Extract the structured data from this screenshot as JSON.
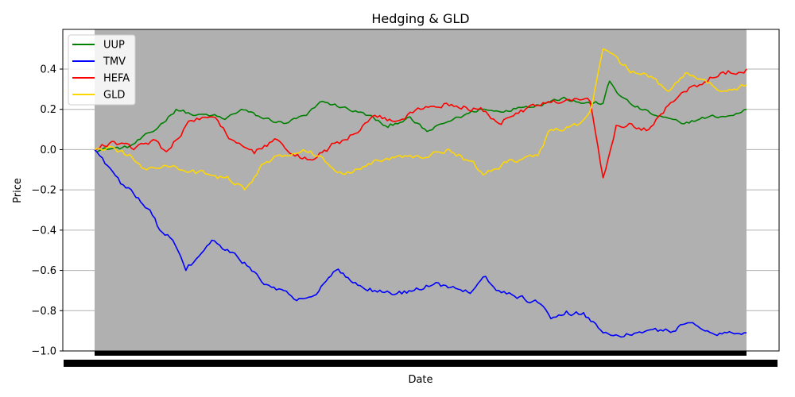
{
  "chart_data": {
    "type": "line",
    "title": "Hedging & GLD",
    "xlabel": "Date",
    "ylabel": "Price",
    "ylim": [
      -1.0,
      0.58
    ],
    "yticks": [
      0.4,
      0.2,
      0.0,
      -0.2,
      -0.4,
      -0.6,
      -0.8,
      -1.0
    ],
    "ytick_labels": [
      "0.4",
      "0.2",
      "0.0",
      "−0.2",
      "−0.4",
      "−0.6",
      "−0.8",
      "−1.0"
    ],
    "x_tick_labels_legible": false,
    "grid": "horizontal",
    "legend_position": "top-left",
    "shaded_region": true,
    "colors": {
      "shade": "#b0b0b0",
      "grid": "#b0b0b0"
    },
    "series": [
      {
        "name": "UUP",
        "color": "#008000",
        "x": [
          0.0,
          0.05,
          0.09,
          0.125,
          0.155,
          0.18,
          0.2,
          0.225,
          0.255,
          0.29,
          0.325,
          0.35,
          0.38,
          0.42,
          0.45,
          0.48,
          0.51,
          0.55,
          0.59,
          0.62,
          0.65,
          0.69,
          0.72,
          0.75,
          0.78,
          0.79,
          0.805,
          0.825,
          0.86,
          0.9,
          0.94,
          0.98,
          1.0
        ],
        "y": [
          0.0,
          0.01,
          0.09,
          0.2,
          0.17,
          0.17,
          0.15,
          0.2,
          0.16,
          0.13,
          0.17,
          0.24,
          0.21,
          0.17,
          0.11,
          0.16,
          0.09,
          0.15,
          0.2,
          0.19,
          0.21,
          0.23,
          0.26,
          0.23,
          0.23,
          0.34,
          0.27,
          0.22,
          0.17,
          0.13,
          0.16,
          0.17,
          0.2
        ]
      },
      {
        "name": "TMV",
        "color": "#0000ff",
        "x": [
          0.0,
          0.02,
          0.04,
          0.06,
          0.085,
          0.1,
          0.12,
          0.14,
          0.16,
          0.18,
          0.2,
          0.23,
          0.26,
          0.29,
          0.31,
          0.34,
          0.37,
          0.4,
          0.43,
          0.46,
          0.49,
          0.52,
          0.55,
          0.58,
          0.6,
          0.62,
          0.64,
          0.68,
          0.7,
          0.72,
          0.75,
          0.78,
          0.8,
          0.84,
          0.88,
          0.91,
          0.94,
          0.97,
          1.0
        ],
        "y": [
          0.0,
          -0.08,
          -0.17,
          -0.22,
          -0.3,
          -0.4,
          -0.45,
          -0.6,
          -0.53,
          -0.45,
          -0.5,
          -0.56,
          -0.67,
          -0.7,
          -0.75,
          -0.72,
          -0.6,
          -0.66,
          -0.7,
          -0.72,
          -0.7,
          -0.67,
          -0.68,
          -0.7,
          -0.63,
          -0.7,
          -0.72,
          -0.76,
          -0.84,
          -0.82,
          -0.81,
          -0.91,
          -0.92,
          -0.91,
          -0.9,
          -0.86,
          -0.9,
          -0.91,
          -0.91
        ]
      },
      {
        "name": "HEFA",
        "color": "#ff0000",
        "x": [
          0.0,
          0.03,
          0.06,
          0.09,
          0.11,
          0.14,
          0.165,
          0.185,
          0.21,
          0.245,
          0.28,
          0.3,
          0.33,
          0.36,
          0.4,
          0.43,
          0.46,
          0.5,
          0.54,
          0.57,
          0.6,
          0.62,
          0.65,
          0.68,
          0.72,
          0.76,
          0.78,
          0.8,
          0.82,
          0.85,
          0.88,
          0.92,
          0.96,
          1.0
        ],
        "y": [
          0.0,
          0.04,
          0.0,
          0.05,
          -0.01,
          0.12,
          0.16,
          0.16,
          0.05,
          -0.02,
          0.05,
          -0.02,
          -0.05,
          0.01,
          0.08,
          0.17,
          0.14,
          0.2,
          0.23,
          0.21,
          0.19,
          0.13,
          0.18,
          0.22,
          0.24,
          0.24,
          -0.14,
          0.12,
          0.13,
          0.1,
          0.22,
          0.32,
          0.38,
          0.4
        ]
      },
      {
        "name": "GLD",
        "color": "#ffd700",
        "x": [
          0.0,
          0.02,
          0.05,
          0.08,
          0.11,
          0.14,
          0.17,
          0.2,
          0.23,
          0.26,
          0.28,
          0.32,
          0.35,
          0.38,
          0.42,
          0.46,
          0.5,
          0.54,
          0.57,
          0.6,
          0.64,
          0.68,
          0.7,
          0.74,
          0.76,
          0.78,
          0.81,
          0.83,
          0.85,
          0.88,
          0.91,
          0.94,
          0.97,
          1.0
        ],
        "y": [
          0.0,
          0.01,
          -0.03,
          -0.1,
          -0.08,
          -0.11,
          -0.12,
          -0.14,
          -0.2,
          -0.07,
          -0.03,
          0.0,
          -0.04,
          -0.12,
          -0.07,
          -0.04,
          -0.04,
          0.0,
          -0.05,
          -0.12,
          -0.05,
          -0.03,
          0.1,
          0.12,
          0.19,
          0.5,
          0.42,
          0.38,
          0.36,
          0.29,
          0.38,
          0.33,
          0.29,
          0.32
        ]
      }
    ]
  }
}
